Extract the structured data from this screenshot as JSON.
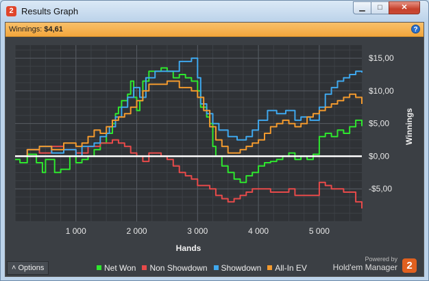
{
  "window": {
    "title": "Results Graph",
    "app_icon": "2",
    "controls": {
      "minimize": "▁",
      "maximize": "□",
      "close": "✕"
    }
  },
  "infobar": {
    "winnings_label": "Winnings:",
    "winnings_value": "$4,61",
    "help": "?"
  },
  "footer": {
    "options_label": "Options",
    "options_icon": "˄",
    "powered_by": "Powered by",
    "brand_name": "Hold'em Manager",
    "brand_logo": "2"
  },
  "chart_data": {
    "type": "line",
    "xlabel": "Hands",
    "ylabel": "Winnings",
    "xlim": [
      0,
      5700
    ],
    "ylim": [
      -10,
      17
    ],
    "x_ticks": [
      1000,
      2000,
      3000,
      4000,
      5000
    ],
    "x_tick_labels": [
      "1 000",
      "2 000",
      "3 000",
      "4 000",
      "5 000"
    ],
    "y_ticks": [
      15,
      10,
      5,
      0,
      -5
    ],
    "y_tick_labels": [
      "$15,00",
      "$10,00",
      "$5,00",
      "$0,00",
      "-$5,00"
    ],
    "zero_line": true,
    "grid": true,
    "legend_position": "bottom",
    "series": [
      {
        "name": "Net Won",
        "color": "#2ee82e",
        "x": [
          0,
          80,
          200,
          350,
          450,
          500,
          650,
          750,
          900,
          1000,
          1100,
          1200,
          1300,
          1400,
          1500,
          1600,
          1650,
          1700,
          1750,
          1850,
          1900,
          1950,
          2000,
          2050,
          2100,
          2200,
          2300,
          2400,
          2500,
          2600,
          2700,
          2800,
          2900,
          3000,
          3050,
          3150,
          3200,
          3250,
          3300,
          3400,
          3500,
          3600,
          3700,
          3800,
          3900,
          4000,
          4100,
          4200,
          4300,
          4400,
          4500,
          4600,
          4700,
          4800,
          4900,
          5000,
          5100,
          5200,
          5300,
          5400,
          5500,
          5600,
          5700
        ],
        "y": [
          -0.5,
          -1.0,
          0.3,
          -1.0,
          -2.5,
          -0.5,
          -2.5,
          -2.0,
          0.0,
          -1.0,
          -0.5,
          0.0,
          1.0,
          2.0,
          3.5,
          5.0,
          6.5,
          7.5,
          8.5,
          9.5,
          11.5,
          9.0,
          7.0,
          8.5,
          11.5,
          13.0,
          13.0,
          13.5,
          13.0,
          12.0,
          12.5,
          12.0,
          11.5,
          10.0,
          7.5,
          6.0,
          5.0,
          1.5,
          0.0,
          -1.5,
          -2.5,
          -3.5,
          -4.0,
          -3.0,
          -2.5,
          -1.5,
          -1.0,
          -0.8,
          -0.5,
          0.0,
          0.5,
          -0.5,
          0.0,
          -0.5,
          0.3,
          3.0,
          3.5,
          3.0,
          4.0,
          3.5,
          4.5,
          5.5,
          4.6
        ]
      },
      {
        "name": "Non Showdown",
        "color": "#e84a4a",
        "x": [
          0,
          200,
          400,
          600,
          800,
          1000,
          1200,
          1400,
          1600,
          1700,
          1800,
          1900,
          2000,
          2100,
          2200,
          2400,
          2500,
          2600,
          2700,
          2800,
          2900,
          3000,
          3200,
          3300,
          3400,
          3500,
          3600,
          3700,
          3800,
          3900,
          4000,
          4200,
          4400,
          4500,
          4600,
          4800,
          5000,
          5100,
          5200,
          5400,
          5600,
          5700
        ],
        "y": [
          0.0,
          1.0,
          0.5,
          1.5,
          1.0,
          0.5,
          1.5,
          2.0,
          2.5,
          2.0,
          1.5,
          0.5,
          0.0,
          -0.8,
          0.5,
          0.0,
          -0.5,
          -1.5,
          -2.5,
          -3.0,
          -3.5,
          -4.5,
          -5.0,
          -6.0,
          -6.5,
          -7.0,
          -6.5,
          -6.0,
          -5.5,
          -5.0,
          -5.0,
          -5.5,
          -5.5,
          -5.0,
          -6.0,
          -6.0,
          -4.0,
          -4.5,
          -5.0,
          -5.5,
          -7.0,
          -8.0
        ]
      },
      {
        "name": "Showdown",
        "color": "#3fa8ee",
        "x": [
          0,
          200,
          400,
          600,
          800,
          1000,
          1100,
          1300,
          1400,
          1500,
          1550,
          1650,
          1750,
          1850,
          1950,
          2050,
          2150,
          2300,
          2500,
          2700,
          2900,
          3000,
          3050,
          3150,
          3250,
          3350,
          3500,
          3650,
          3800,
          3900,
          4000,
          4150,
          4300,
          4450,
          4600,
          4700,
          4850,
          5000,
          5100,
          5200,
          5300,
          5400,
          5500,
          5600,
          5700
        ],
        "y": [
          0.0,
          1.0,
          1.5,
          0.5,
          1.0,
          0.0,
          1.5,
          2.0,
          3.0,
          3.5,
          4.5,
          6.0,
          7.5,
          9.0,
          10.5,
          9.0,
          12.0,
          13.0,
          13.0,
          14.5,
          15.0,
          12.0,
          8.0,
          6.5,
          5.0,
          4.0,
          3.0,
          2.5,
          3.0,
          4.0,
          5.5,
          7.0,
          6.5,
          7.0,
          5.5,
          6.0,
          5.5,
          7.5,
          9.5,
          10.5,
          11.5,
          12.0,
          12.5,
          13.0,
          12.8
        ]
      },
      {
        "name": "All-In EV",
        "color": "#f39a2e",
        "x": [
          0,
          200,
          400,
          600,
          800,
          1000,
          1100,
          1200,
          1300,
          1400,
          1500,
          1600,
          1700,
          1800,
          1900,
          2000,
          2100,
          2200,
          2300,
          2500,
          2700,
          2900,
          3000,
          3100,
          3200,
          3300,
          3400,
          3500,
          3600,
          3700,
          3800,
          3900,
          4000,
          4100,
          4200,
          4300,
          4400,
          4500,
          4600,
          4700,
          4800,
          4900,
          5000,
          5100,
          5200,
          5300,
          5400,
          5500,
          5600,
          5700
        ],
        "y": [
          0.0,
          1.0,
          1.5,
          1.0,
          2.0,
          1.5,
          2.0,
          3.0,
          4.0,
          3.5,
          4.5,
          5.5,
          6.0,
          6.5,
          7.5,
          8.5,
          10.0,
          11.0,
          11.0,
          11.5,
          10.5,
          10.0,
          9.0,
          7.0,
          4.5,
          2.5,
          1.5,
          0.5,
          0.5,
          1.0,
          1.5,
          2.0,
          2.5,
          3.5,
          4.5,
          5.0,
          5.5,
          5.0,
          4.5,
          5.0,
          6.0,
          6.5,
          7.0,
          7.5,
          8.0,
          8.5,
          9.0,
          9.5,
          9.0,
          8.0
        ]
      }
    ]
  }
}
